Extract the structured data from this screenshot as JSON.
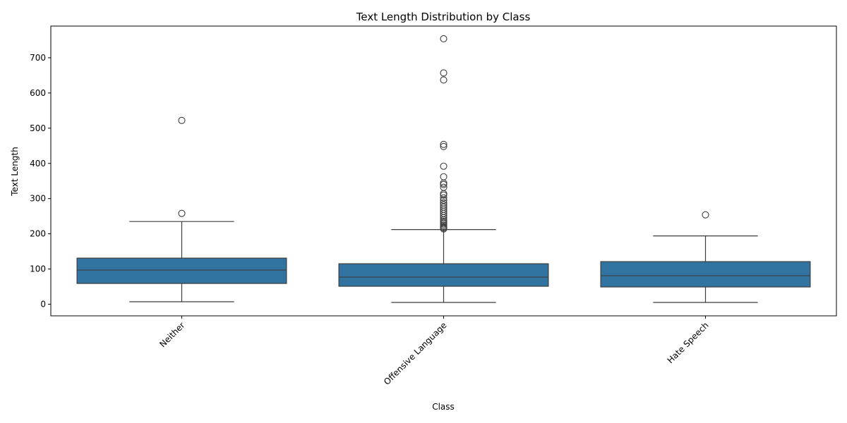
{
  "chart_data": {
    "type": "box",
    "title": "Text Length Distribution by Class",
    "xlabel": "Class",
    "ylabel": "Text Length",
    "ylim": [
      -33,
      790
    ],
    "yticks": [
      0,
      100,
      200,
      300,
      400,
      500,
      600,
      700
    ],
    "categories": [
      "Neither",
      "Offensive Language",
      "Hate Speech"
    ],
    "box_color": "#3274a1",
    "line_color": "#3d3d3d",
    "boxes": [
      {
        "label": "Neither",
        "whisker_low": 7,
        "q1": 59,
        "median": 97,
        "q3": 131,
        "whisker_high": 235,
        "outliers": [
          258,
          522
        ]
      },
      {
        "label": "Offensive Language",
        "whisker_low": 5,
        "q1": 51,
        "median": 77,
        "q3": 115,
        "whisker_high": 212,
        "outliers": [
          214,
          217,
          220,
          224,
          228,
          232,
          236,
          240,
          246,
          252,
          258,
          264,
          270,
          276,
          282,
          288,
          295,
          302,
          310,
          314,
          332,
          340,
          344,
          362,
          392,
          448,
          454,
          637,
          657,
          754
        ]
      },
      {
        "label": "Hate Speech",
        "whisker_low": 5,
        "q1": 49,
        "median": 81,
        "q3": 121,
        "whisker_high": 194,
        "outliers": [
          254
        ]
      }
    ]
  }
}
